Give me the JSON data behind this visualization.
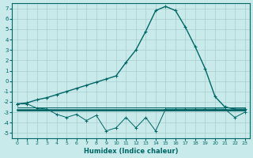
{
  "xlabel": "Humidex (Indice chaleur)",
  "background_color": "#c8eaea",
  "grid_color": "#aacccc",
  "line_color": "#006666",
  "xlim": [
    -0.5,
    23.5
  ],
  "ylim": [
    -5.5,
    7.5
  ],
  "yticks": [
    -5,
    -4,
    -3,
    -2,
    -1,
    0,
    1,
    2,
    3,
    4,
    5,
    6,
    7
  ],
  "xticks": [
    0,
    1,
    2,
    3,
    4,
    5,
    6,
    7,
    8,
    9,
    10,
    11,
    12,
    13,
    14,
    15,
    16,
    17,
    18,
    19,
    20,
    21,
    22,
    23
  ],
  "main_curve": [
    [
      0,
      -2.2
    ],
    [
      1,
      -2.1
    ],
    [
      2,
      -1.8
    ],
    [
      3,
      -1.6
    ],
    [
      4,
      -1.3
    ],
    [
      5,
      -1.0
    ],
    [
      6,
      -0.7
    ],
    [
      7,
      -0.4
    ],
    [
      8,
      -0.1
    ],
    [
      9,
      0.2
    ],
    [
      10,
      0.5
    ],
    [
      11,
      1.8
    ],
    [
      12,
      3.0
    ],
    [
      13,
      4.8
    ],
    [
      14,
      6.8
    ],
    [
      15,
      7.2
    ],
    [
      16,
      6.8
    ],
    [
      17,
      5.2
    ],
    [
      18,
      3.3
    ],
    [
      19,
      1.2
    ],
    [
      20,
      -1.5
    ],
    [
      21,
      -2.5
    ],
    [
      22,
      -2.7
    ],
    [
      23,
      -2.7
    ]
  ],
  "zigzag_curve": [
    [
      0,
      -2.2
    ],
    [
      1,
      -2.2
    ],
    [
      2,
      -2.6
    ],
    [
      3,
      -2.7
    ],
    [
      4,
      -3.2
    ],
    [
      5,
      -3.5
    ],
    [
      6,
      -3.2
    ],
    [
      7,
      -3.8
    ],
    [
      8,
      -3.3
    ],
    [
      9,
      -4.8
    ],
    [
      10,
      -4.5
    ],
    [
      11,
      -3.5
    ],
    [
      12,
      -4.5
    ],
    [
      13,
      -3.5
    ],
    [
      14,
      -4.8
    ],
    [
      15,
      -2.7
    ],
    [
      16,
      -2.7
    ],
    [
      17,
      -2.7
    ],
    [
      18,
      -2.7
    ],
    [
      19,
      -2.7
    ],
    [
      20,
      -2.7
    ],
    [
      21,
      -2.7
    ],
    [
      22,
      -3.5
    ],
    [
      23,
      -3.0
    ]
  ],
  "flat_line1_y": -2.55,
  "flat_line2_y": -2.75,
  "flat_line3_y": -2.85,
  "flat_line_x_start": 0,
  "flat_line_x_end": 23
}
